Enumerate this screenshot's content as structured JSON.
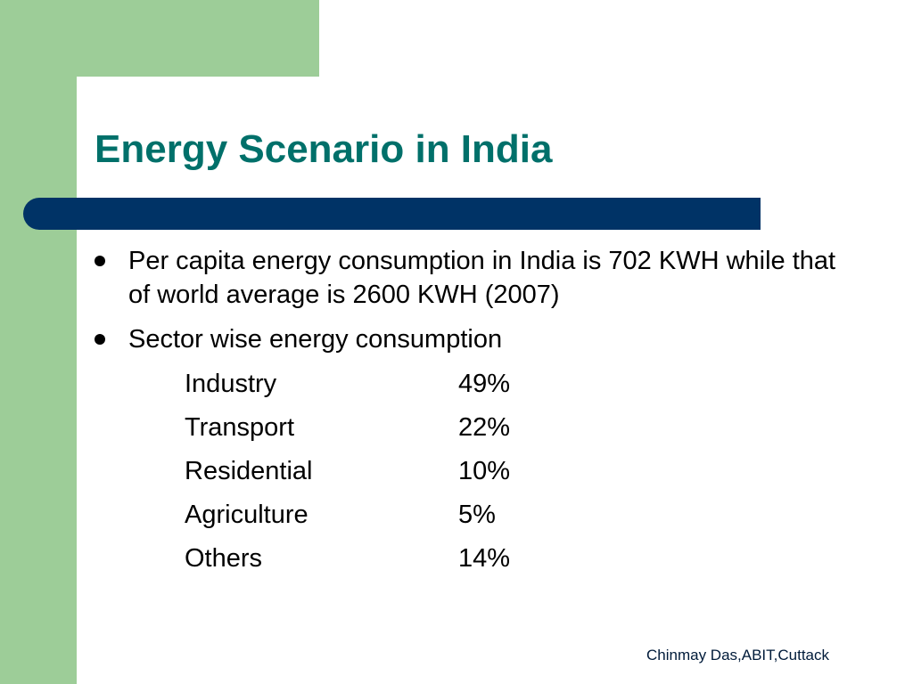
{
  "title": "Energy Scenario in India",
  "colors": {
    "title": "#00706a",
    "accent_bar": "#003366",
    "side_band": "#9dcd98"
  },
  "bullets": [
    {
      "text": "Per capita energy consumption in India is 702 KWH while that of world average is 2600 KWH (2007)"
    },
    {
      "text": "Sector wise energy consumption"
    }
  ],
  "sectors": [
    {
      "name": "Industry",
      "value": "49%"
    },
    {
      "name": "Transport",
      "value": "22%"
    },
    {
      "name": "Residential",
      "value": "10%"
    },
    {
      "name": "Agriculture",
      "value": "5%"
    },
    {
      "name": "Others",
      "value": "14%"
    }
  ],
  "footer": "Chinmay Das,ABIT,Cuttack"
}
